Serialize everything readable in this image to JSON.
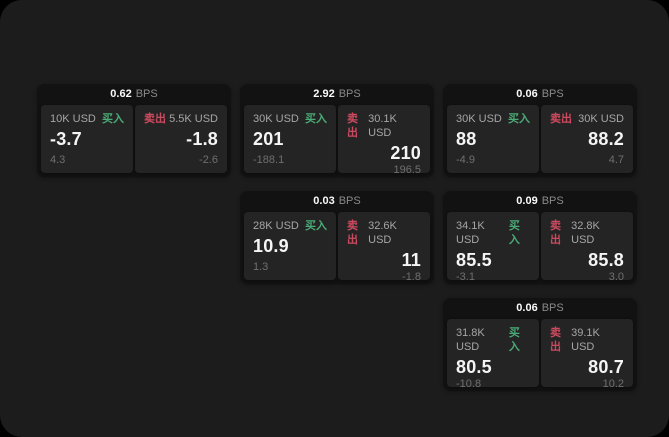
{
  "theme": {
    "page_bg": "#000000",
    "surface_bg": "#1c1c1c",
    "card_bg": "#121212",
    "panel_bg": "#242424",
    "buy_color": "#4aab76",
    "sell_color": "#cc4a5f",
    "value_color": "#f5f5f5",
    "label_color": "#a6a6a6",
    "muted_color": "#6f6f6f"
  },
  "labels": {
    "buy": "买入",
    "sell": "卖出",
    "bps_unit": "BPS"
  },
  "cards": [
    {
      "bps": "0.62",
      "row": 1,
      "col": 1,
      "buy": {
        "amount": "10K USD",
        "value": "-3.7",
        "delta": "4.3"
      },
      "sell": {
        "amount": "5.5K USD",
        "value": "-1.8",
        "delta": "-2.6"
      }
    },
    {
      "bps": "2.92",
      "row": 1,
      "col": 2,
      "buy": {
        "amount": "30K USD",
        "value": "201",
        "delta": "-188.1"
      },
      "sell": {
        "amount": "30.1K USD",
        "value": "210",
        "delta": "196.5"
      }
    },
    {
      "bps": "0.06",
      "row": 1,
      "col": 3,
      "buy": {
        "amount": "30K USD",
        "value": "88",
        "delta": "-4.9"
      },
      "sell": {
        "amount": "30K USD",
        "value": "88.2",
        "delta": "4.7"
      }
    },
    {
      "bps": "0.03",
      "row": 2,
      "col": 2,
      "buy": {
        "amount": "28K USD",
        "value": "10.9",
        "delta": "1.3"
      },
      "sell": {
        "amount": "32.6K USD",
        "value": "11",
        "delta": "-1.8"
      }
    },
    {
      "bps": "0.09",
      "row": 2,
      "col": 3,
      "buy": {
        "amount": "34.1K USD",
        "value": "85.5",
        "delta": "-3.1"
      },
      "sell": {
        "amount": "32.8K USD",
        "value": "85.8",
        "delta": "3.0"
      }
    },
    {
      "bps": "0.06",
      "row": 3,
      "col": 3,
      "buy": {
        "amount": "31.8K USD",
        "value": "80.5",
        "delta": "-10.8"
      },
      "sell": {
        "amount": "39.1K USD",
        "value": "80.7",
        "delta": "10.2"
      }
    }
  ]
}
